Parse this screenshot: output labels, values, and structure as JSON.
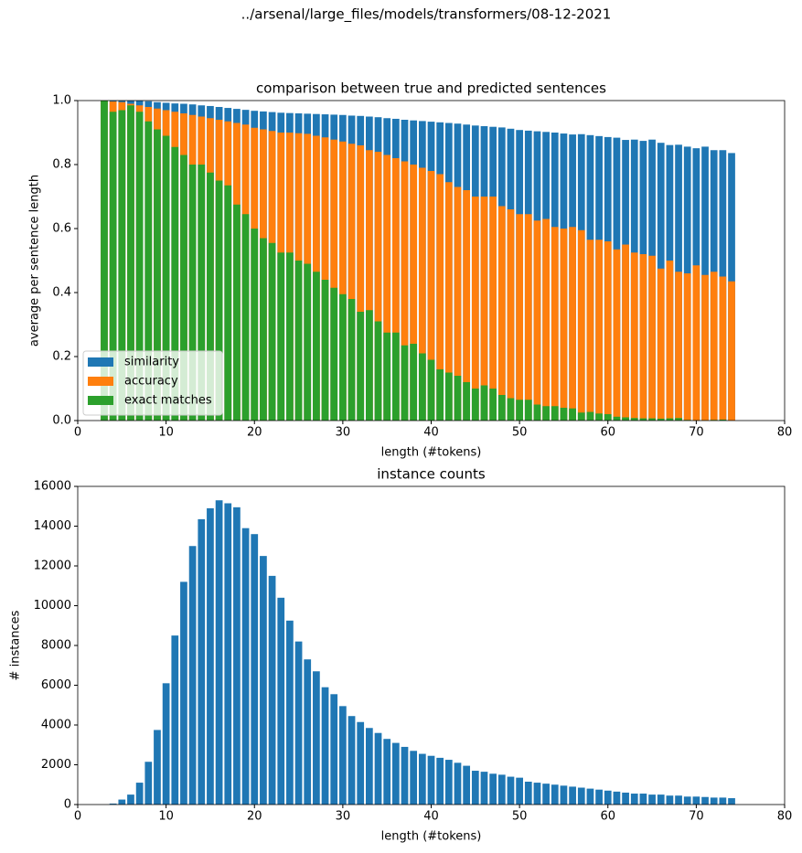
{
  "title": "../arsenal/large_files/models/transformers/08-12-2021",
  "chart_data": [
    {
      "type": "bar",
      "title": "comparison between true and predicted sentences",
      "xlabel": "length (#tokens)",
      "ylabel": "average per sentence length",
      "x": [
        3,
        4,
        5,
        6,
        7,
        8,
        9,
        10,
        11,
        12,
        13,
        14,
        15,
        16,
        17,
        18,
        19,
        20,
        21,
        22,
        23,
        24,
        25,
        26,
        27,
        28,
        29,
        30,
        31,
        32,
        33,
        34,
        35,
        36,
        37,
        38,
        39,
        40,
        41,
        42,
        43,
        44,
        45,
        46,
        47,
        48,
        49,
        50,
        51,
        52,
        53,
        54,
        55,
        56,
        57,
        58,
        59,
        60,
        61,
        62,
        63,
        64,
        65,
        66,
        67,
        68,
        69,
        70,
        71,
        72,
        73,
        74
      ],
      "series": [
        {
          "name": "similarity",
          "color": "#1f77b4",
          "values": [
            1.0,
            1.0,
            1.0,
            1.0,
            1.0,
            0.998,
            0.995,
            0.993,
            0.991,
            0.99,
            0.988,
            0.985,
            0.983,
            0.98,
            0.977,
            0.974,
            0.971,
            0.968,
            0.966,
            0.964,
            0.962,
            0.961,
            0.96,
            0.959,
            0.958,
            0.957,
            0.956,
            0.955,
            0.953,
            0.952,
            0.95,
            0.948,
            0.945,
            0.943,
            0.94,
            0.938,
            0.936,
            0.934,
            0.932,
            0.93,
            0.928,
            0.925,
            0.922,
            0.92,
            0.918,
            0.916,
            0.912,
            0.908,
            0.906,
            0.904,
            0.902,
            0.9,
            0.897,
            0.894,
            0.895,
            0.892,
            0.889,
            0.886,
            0.884,
            0.877,
            0.878,
            0.874,
            0.878,
            0.868,
            0.861,
            0.862,
            0.856,
            0.851,
            0.856,
            0.845,
            0.845,
            0.836
          ]
        },
        {
          "name": "accuracy",
          "color": "#ff7f0e",
          "values": [
            1.0,
            0.997,
            0.995,
            0.99,
            0.985,
            0.98,
            0.975,
            0.97,
            0.965,
            0.96,
            0.955,
            0.95,
            0.945,
            0.94,
            0.935,
            0.93,
            0.925,
            0.915,
            0.91,
            0.905,
            0.9,
            0.9,
            0.898,
            0.896,
            0.89,
            0.885,
            0.878,
            0.872,
            0.865,
            0.86,
            0.845,
            0.84,
            0.83,
            0.82,
            0.81,
            0.8,
            0.79,
            0.78,
            0.77,
            0.745,
            0.73,
            0.72,
            0.7,
            0.7,
            0.7,
            0.67,
            0.66,
            0.645,
            0.645,
            0.625,
            0.63,
            0.605,
            0.6,
            0.605,
            0.595,
            0.565,
            0.565,
            0.56,
            0.535,
            0.55,
            0.525,
            0.52,
            0.515,
            0.475,
            0.5,
            0.465,
            0.46,
            0.485,
            0.455,
            0.465,
            0.45,
            0.435
          ]
        },
        {
          "name": "exact matches",
          "color": "#2ca02c",
          "values": [
            1.0,
            0.965,
            0.97,
            0.985,
            0.965,
            0.935,
            0.91,
            0.89,
            0.855,
            0.83,
            0.8,
            0.8,
            0.775,
            0.75,
            0.735,
            0.675,
            0.645,
            0.6,
            0.57,
            0.555,
            0.525,
            0.525,
            0.5,
            0.49,
            0.465,
            0.44,
            0.415,
            0.395,
            0.38,
            0.34,
            0.345,
            0.31,
            0.275,
            0.275,
            0.235,
            0.24,
            0.21,
            0.19,
            0.16,
            0.15,
            0.14,
            0.12,
            0.1,
            0.11,
            0.1,
            0.08,
            0.07,
            0.065,
            0.065,
            0.05,
            0.045,
            0.045,
            0.04,
            0.038,
            0.025,
            0.027,
            0.022,
            0.02,
            0.012,
            0.01,
            0.008,
            0.007,
            0.007,
            0.006,
            0.007,
            0.008,
            0.002,
            0.001,
            0.001,
            0.002,
            0.003,
            0.0
          ]
        }
      ],
      "xlim": [
        0,
        80
      ],
      "xticks": [
        0,
        10,
        20,
        30,
        40,
        50,
        60,
        70,
        80
      ],
      "ylim": [
        0,
        1
      ],
      "yticks": [
        {
          "value": 0,
          "label": "0.0"
        },
        0.2,
        0.4,
        0.6,
        0.8,
        {
          "value": 1,
          "label": "1.0"
        }
      ],
      "legend": "lower left"
    },
    {
      "type": "bar",
      "title": "instance counts",
      "xlabel": "length (#tokens)",
      "ylabel": "# instances",
      "x": [
        4,
        5,
        6,
        7,
        8,
        9,
        10,
        11,
        12,
        13,
        14,
        15,
        16,
        17,
        18,
        19,
        20,
        21,
        22,
        23,
        24,
        25,
        26,
        27,
        28,
        29,
        30,
        31,
        32,
        33,
        34,
        35,
        36,
        37,
        38,
        39,
        40,
        41,
        42,
        43,
        44,
        45,
        46,
        47,
        48,
        49,
        50,
        51,
        52,
        53,
        54,
        55,
        56,
        57,
        58,
        59,
        60,
        61,
        62,
        63,
        64,
        65,
        66,
        67,
        68,
        69,
        70,
        71,
        72,
        73,
        74
      ],
      "values": [
        50,
        250,
        500,
        1100,
        2150,
        3750,
        6100,
        8500,
        11200,
        13000,
        14350,
        14900,
        15300,
        15150,
        14950,
        13900,
        13600,
        12500,
        11500,
        10400,
        9250,
        8200,
        7300,
        6700,
        5900,
        5550,
        4950,
        4450,
        4150,
        3850,
        3600,
        3300,
        3100,
        2900,
        2700,
        2550,
        2450,
        2350,
        2250,
        2100,
        1950,
        1700,
        1650,
        1550,
        1500,
        1400,
        1350,
        1150,
        1100,
        1050,
        1000,
        950,
        900,
        850,
        800,
        750,
        700,
        650,
        600,
        550,
        550,
        500,
        500,
        450,
        450,
        400,
        400,
        380,
        350,
        350,
        320
      ],
      "color": "#1f77b4",
      "xlim": [
        0,
        80
      ],
      "xticks": [
        0,
        10,
        20,
        30,
        40,
        50,
        60,
        70,
        80
      ],
      "ylim": [
        0,
        16000
      ],
      "yticks": [
        0,
        2000,
        4000,
        6000,
        8000,
        10000,
        12000,
        14000,
        16000
      ]
    }
  ]
}
